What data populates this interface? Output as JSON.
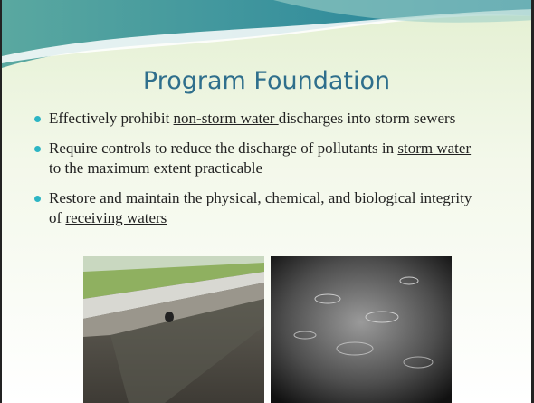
{
  "title": "Program Foundation",
  "bullets": [
    {
      "before": "Effectively prohibit ",
      "link": "non-storm water ",
      "after": "discharges into storm sewers"
    },
    {
      "before": "Require controls to reduce the discharge of pollutants in ",
      "link": "storm water ",
      "after": "to the maximum extent practicable"
    },
    {
      "before": "Restore and maintain the physical, chemical, and biological integrity of ",
      "link": "receiving waters",
      "after": ""
    }
  ]
}
